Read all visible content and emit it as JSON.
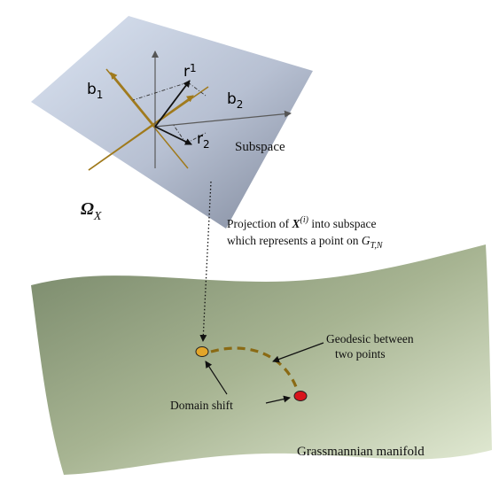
{
  "subspace": {
    "label": "Subspace",
    "omega_symbol": "Ω",
    "omega_subscript": "X",
    "basis_b1": {
      "base": "b",
      "sub": "1"
    },
    "basis_b2": {
      "base": "b",
      "sub": "2"
    },
    "vector_r1": {
      "base": "r",
      "sub": "1"
    },
    "vector_r2": {
      "base": "r",
      "sub": "2"
    }
  },
  "projection_caption": {
    "line1_prefix": "Projection of ",
    "line1_var": "X",
    "line1_sup": "(i)",
    "line1_suffix": " into subspace",
    "line2_prefix": "which represents a point on ",
    "line2_var": "G",
    "line2_sub": "T,N"
  },
  "manifold": {
    "label": "Grassmannian manifold",
    "geodesic_line1": "Geodesic between",
    "geodesic_line2": "two points",
    "domain_shift": "Domain shift"
  },
  "colors": {
    "subspace_light": "#d6e0ef",
    "subspace_dark": "#8a93a6",
    "manifold_dark": "#7f8f6c",
    "manifold_light": "#dfe8cf",
    "basis_axis": "#a07a1c",
    "geodesic": "#8a6a14",
    "point_source": "#e2a52a",
    "point_target": "#d8141c"
  }
}
